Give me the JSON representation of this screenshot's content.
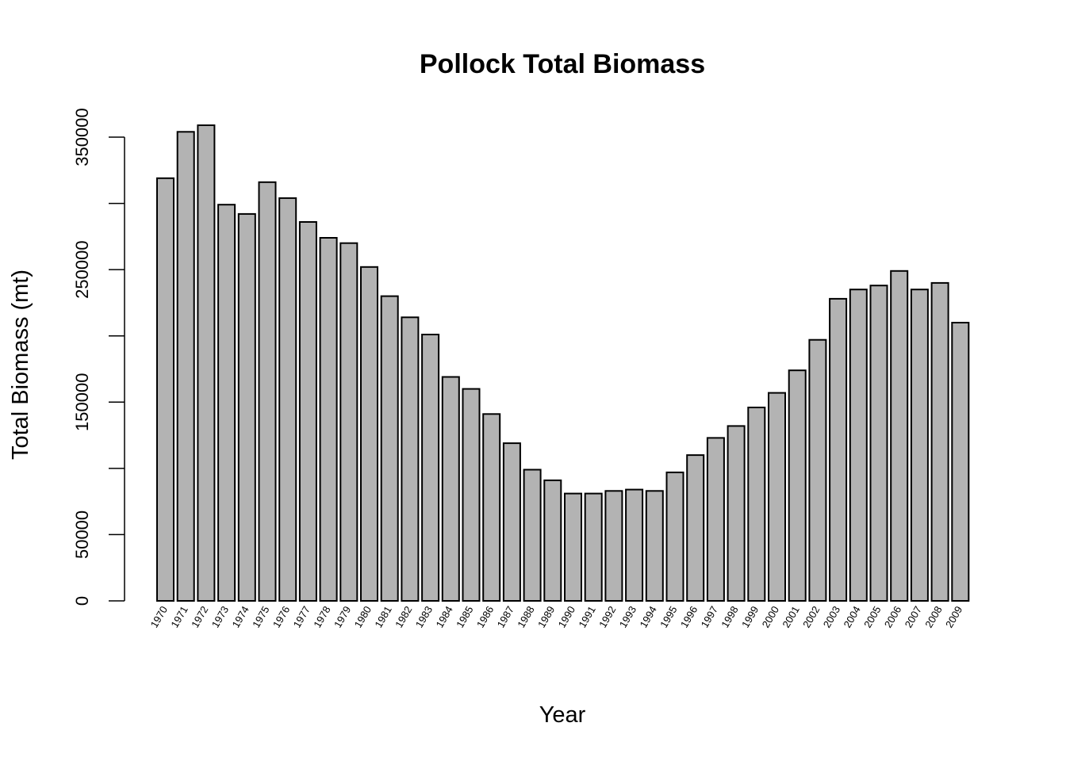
{
  "chart_data": {
    "type": "bar",
    "title": "Pollock Total Biomass",
    "xlabel": "Year",
    "ylabel": "Total Biomass (mt)",
    "ylim": [
      0,
      360000
    ],
    "yticks": [
      0,
      50000,
      150000,
      250000,
      350000
    ],
    "yticks_minor": [
      100000,
      200000,
      300000
    ],
    "grid": false,
    "legend": "none",
    "bar_color": "#b3b3b3",
    "edge_color": "#000000",
    "categories": [
      "1970",
      "1971",
      "1972",
      "1973",
      "1974",
      "1975",
      "1976",
      "1977",
      "1978",
      "1979",
      "1980",
      "1981",
      "1982",
      "1983",
      "1984",
      "1985",
      "1986",
      "1987",
      "1988",
      "1989",
      "1990",
      "1991",
      "1992",
      "1993",
      "1994",
      "1995",
      "1996",
      "1997",
      "1998",
      "1999",
      "2000",
      "2001",
      "2002",
      "2003",
      "2004",
      "2005",
      "2006",
      "2007",
      "2008",
      "2009"
    ],
    "values": [
      319000,
      354000,
      359000,
      299000,
      292000,
      316000,
      304000,
      286000,
      274000,
      270000,
      252000,
      230000,
      214000,
      201000,
      169000,
      160000,
      141000,
      119000,
      99000,
      91000,
      81000,
      81000,
      83000,
      84000,
      83000,
      97000,
      110000,
      123000,
      132000,
      146000,
      157000,
      174000,
      197000,
      228000,
      235000,
      238000,
      249000,
      235000,
      240000,
      210000
    ]
  }
}
